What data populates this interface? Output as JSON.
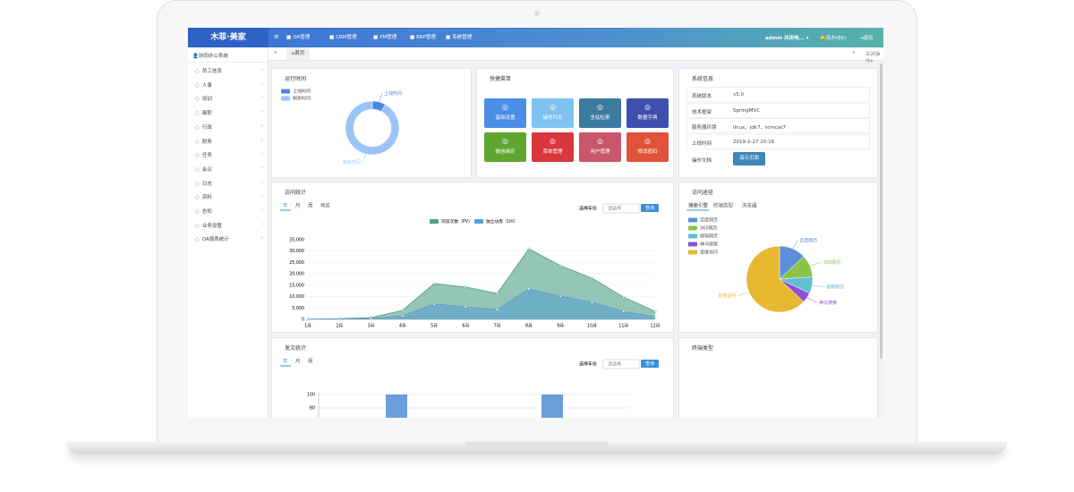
{
  "header": {
    "logo": "木菲·美家",
    "nav": [
      "OA管理",
      "CRM管理",
      "PM管理",
      "ERP管理",
      "系统管理"
    ],
    "user": "admin 共用电...",
    "todo": "待办(86)",
    "logout": "退出"
  },
  "sidebar": {
    "title": "协同办公系统",
    "items": [
      "员工信息",
      "人事",
      "培训",
      "离职",
      "行政",
      "财务",
      "任务",
      "会议",
      "日志",
      "资料",
      "告知",
      "业务设置",
      "OA报表统计"
    ]
  },
  "tabs": {
    "home": "首页",
    "close": "关闭操作"
  },
  "runtime": {
    "title": "运行时间",
    "chart": {
      "type": "donut",
      "categories": [
        "上线时间",
        "剩余时间"
      ],
      "values": [
        8,
        92
      ],
      "colors": [
        "#4b87e0",
        "#9cc3f5"
      ]
    }
  },
  "quick_menu": {
    "title": "快捷菜单",
    "items": [
      {
        "label": "基础设置",
        "color": "#4a8ee6"
      },
      {
        "label": "操作日志",
        "color": "#7ec3f0"
      },
      {
        "label": "全站检索",
        "color": "#3c7aa0"
      },
      {
        "label": "数据字典",
        "color": "#3e4fb0"
      },
      {
        "label": "微信绑定",
        "color": "#5fa630"
      },
      {
        "label": "菜单管理",
        "color": "#d9363e"
      },
      {
        "label": "用户管理",
        "color": "#c9566a"
      },
      {
        "label": "修改密码",
        "color": "#e0533a"
      }
    ]
  },
  "system_info": {
    "title": "系统信息",
    "rows": [
      [
        "系统版本",
        "v5.0"
      ],
      [
        "技术框架",
        "SpringMVC"
      ],
      [
        "服务器环境",
        "linux、jdk7、tomcat7"
      ],
      [
        "上线时间",
        "2019-2-27 20:16"
      ]
    ],
    "doc_label": "操作文档",
    "doc_button": "演示页面"
  },
  "visits": {
    "title": "访问统计",
    "tabs": [
      "年",
      "月",
      "周",
      "地区"
    ],
    "year_label": "选择年份",
    "select": "请选择",
    "query": "查询",
    "chart": {
      "type": "area",
      "categories": [
        "1月",
        "2月",
        "3月",
        "4月",
        "5月",
        "6月",
        "7月",
        "8月",
        "9月",
        "10月",
        "11月",
        "12月"
      ],
      "series": [
        {
          "name": "浏览次数（PV）",
          "color": "#4e9e84",
          "values": [
            100,
            300,
            800,
            4000,
            15700,
            14200,
            11400,
            31000,
            23600,
            18100,
            9800,
            3500
          ]
        },
        {
          "name": "独立访客（UV）",
          "color": "#5aa0d4",
          "values": [
            50,
            150,
            400,
            1500,
            6700,
            5500,
            4300,
            13400,
            10200,
            7500,
            3500,
            1200
          ]
        }
      ],
      "ylim": [
        0,
        35000
      ],
      "yticks": [
        0,
        {
          "value": 5000,
          "label": "5,000"
        },
        {
          "value": 10000,
          "label": "10,000"
        },
        {
          "value": 15000,
          "label": "15,000"
        },
        {
          "value": 20000,
          "label": "20,000"
        },
        {
          "value": 25000,
          "label": "25,000"
        },
        {
          "value": 30000,
          "label": "30,000"
        },
        {
          "value": 35000,
          "label": "35,000"
        }
      ],
      "grid": true
    }
  },
  "sources": {
    "title": "访问途径",
    "tabs": [
      "搜索引擎",
      "终端类型",
      "浏览器"
    ],
    "chart": {
      "type": "pie",
      "categories": [
        "百度网页",
        "360网页",
        "搜狗网页",
        "神马搜索",
        "直接访问"
      ],
      "values": [
        13,
        11,
        8,
        5,
        63
      ],
      "colors": [
        "#5b8fd9",
        "#8dc24a",
        "#5fc0cf",
        "#8b4fd6",
        "#e8b830"
      ]
    }
  },
  "posts": {
    "title": "发文统计",
    "tabs": [
      "年",
      "月",
      "周"
    ],
    "year_label": "选择年份",
    "select": "请选择",
    "query": "查询",
    "chart": {
      "type": "bar",
      "categories": [
        null,
        null
      ],
      "values": [
        100,
        100
      ],
      "color": "#6a9fdc",
      "ylim": [
        0,
        100
      ],
      "yticks": [
        80,
        100
      ],
      "grid": true
    }
  },
  "terminal": {
    "title": "终端类型"
  }
}
